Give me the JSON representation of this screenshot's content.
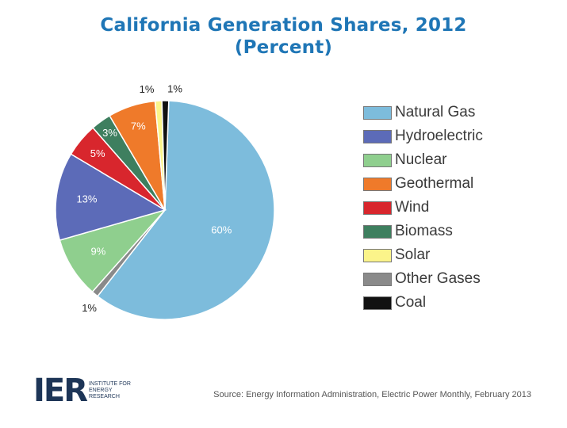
{
  "title_line1": "California Generation Shares, 2012",
  "title_line2": "(Percent)",
  "chart_data": {
    "type": "pie",
    "title": "California Generation Shares, 2012 (Percent)",
    "slices": [
      {
        "name": "Natural Gas",
        "value": 60,
        "label": "60%",
        "color": "#7dbcdc"
      },
      {
        "name": "Other Gases",
        "value": 1,
        "label": "1%",
        "color": "#8a8a8a"
      },
      {
        "name": "Nuclear",
        "value": 9,
        "label": "9%",
        "color": "#8fcf8e"
      },
      {
        "name": "Hydroelectric",
        "value": 13,
        "label": "13%",
        "color": "#5c6bb8"
      },
      {
        "name": "Wind",
        "value": 5,
        "label": "5%",
        "color": "#d8262d"
      },
      {
        "name": "Biomass",
        "value": 3,
        "label": "3%",
        "color": "#3e7f5f"
      },
      {
        "name": "Geothermal",
        "value": 7,
        "label": "7%",
        "color": "#ef7a2a"
      },
      {
        "name": "Solar",
        "value": 1,
        "label": "1%",
        "color": "#fbf48a"
      },
      {
        "name": "Coal",
        "value": 1,
        "label": "1%",
        "color": "#111111"
      }
    ],
    "legend": {
      "placement": "right",
      "entries": [
        {
          "name": "Natural Gas",
          "color": "#7dbcdc"
        },
        {
          "name": "Hydroelectric",
          "color": "#5c6bb8"
        },
        {
          "name": "Nuclear",
          "color": "#8fcf8e"
        },
        {
          "name": "Geothermal",
          "color": "#ef7a2a"
        },
        {
          "name": "Wind",
          "color": "#d8262d"
        },
        {
          "name": "Biomass",
          "color": "#3e7f5f"
        },
        {
          "name": "Solar",
          "color": "#fbf48a"
        },
        {
          "name": "Other Gases",
          "color": "#8a8a8a"
        },
        {
          "name": "Coal",
          "color": "#111111"
        }
      ]
    }
  },
  "logo": {
    "mark": "IER",
    "sub_line1": "INSTITUTE FOR",
    "sub_line2": "ENERGY RESEARCH"
  },
  "source": "Source: Energy Information Administration, Electric Power Monthly, February 2013"
}
